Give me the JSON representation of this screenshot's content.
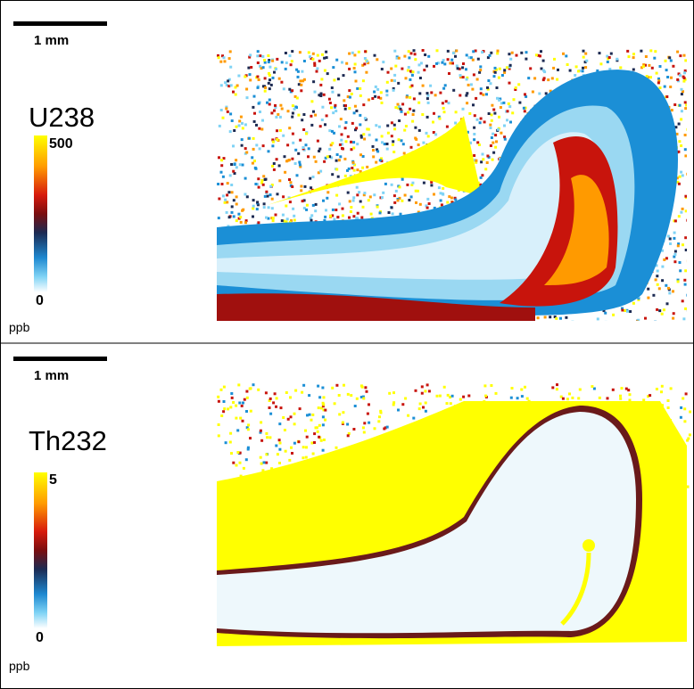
{
  "panels": [
    {
      "scale_label": "1 mm",
      "element": "U238",
      "colorbar_max": "500",
      "colorbar_min": "0",
      "unit": "ppb"
    },
    {
      "scale_label": "1 mm",
      "element": "Th232",
      "colorbar_max": "5",
      "colorbar_min": "0",
      "unit": "ppb"
    }
  ]
}
